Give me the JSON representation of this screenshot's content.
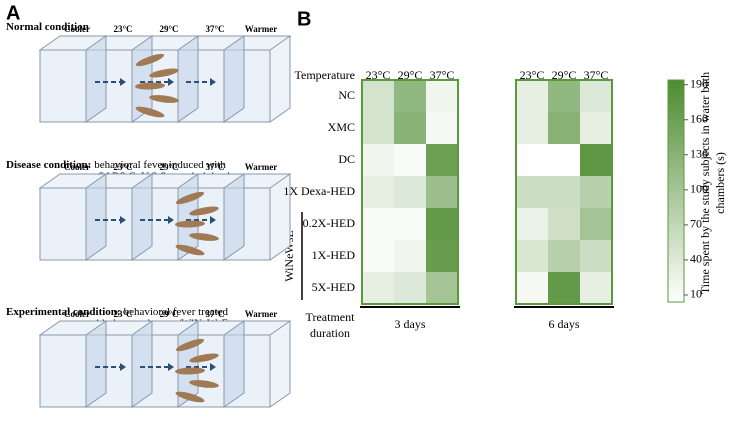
{
  "panel_a": {
    "label": "A",
    "chamber_labels": [
      "Cooler",
      "23°C",
      "29°C",
      "37°C",
      "Warmer"
    ],
    "diagrams": [
      {
        "title": "Normal condition",
        "description": ""
      },
      {
        "title": "Disease condition:",
        "description": "behavioral fever induced with SARS CoV-2 S protein injection"
      },
      {
        "title": "Experimental condition:",
        "description": "behavioral fever treated with dexamethasone/WiNeWsE"
      }
    ]
  },
  "chart_data": {
    "type": "heatmap",
    "panel_label": "B",
    "column_header_label": "Temperature",
    "columns": [
      "23°C",
      "29°C",
      "37°C"
    ],
    "rows": [
      "NC",
      "XMC",
      "DC",
      "1X Dexa-HED",
      "0.2X-HED",
      "1X-HED",
      "5X-HED"
    ],
    "row_group_label": "WiNeWsE",
    "group_axis_label": "Treatment duration",
    "groups": [
      {
        "name": "3 days",
        "values": [
          [
            50,
            120,
            20
          ],
          [
            50,
            130,
            15
          ],
          [
            20,
            10,
            160
          ],
          [
            30,
            40,
            110
          ],
          [
            10,
            10,
            170
          ],
          [
            10,
            20,
            165
          ],
          [
            30,
            40,
            100
          ]
        ]
      },
      {
        "name": "6 days",
        "values": [
          [
            30,
            120,
            40
          ],
          [
            30,
            130,
            30
          ],
          [
            5,
            5,
            175
          ],
          [
            60,
            60,
            80
          ],
          [
            25,
            55,
            100
          ],
          [
            45,
            80,
            60
          ],
          [
            15,
            170,
            30
          ]
        ]
      }
    ],
    "colorbar_label": "Time spent by the study subjects in water bath chambers (s)",
    "zlim": [
      4,
      194
    ],
    "zticks": [
      10,
      40,
      70,
      100,
      130,
      160,
      190
    ],
    "color_range": [
      "#ffffff",
      "#4d8b30"
    ]
  }
}
